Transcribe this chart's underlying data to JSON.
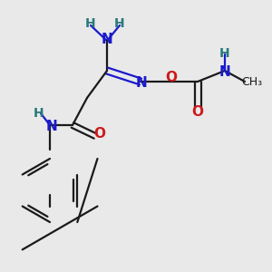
{
  "bg_color": "#e9e9e9",
  "C": "#1a1a1a",
  "N": "#1a1acc",
  "O": "#cc1a1a",
  "H": "#2a7a7a",
  "bond_lw": 1.6,
  "font_bold": "bold"
}
